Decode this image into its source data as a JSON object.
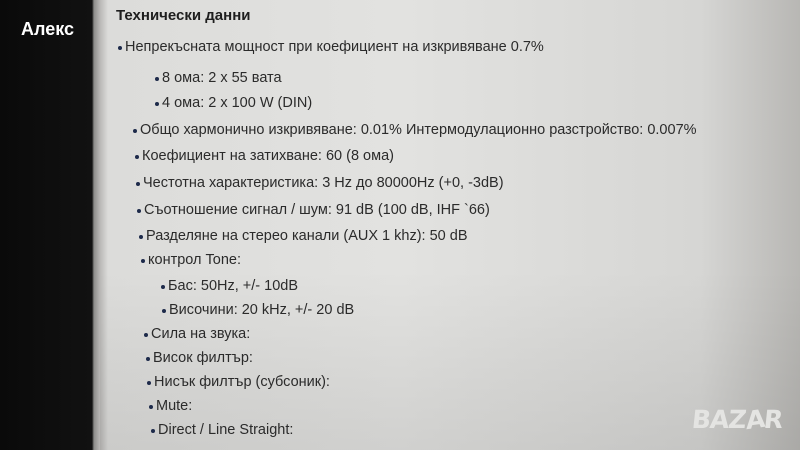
{
  "watermark": "Алекс",
  "heading": "Технически данни",
  "items": [
    {
      "level": 1,
      "text": "Непрекъсната мощност при коефициент на изкривяване 0.7%"
    },
    {
      "level": 2,
      "text": "8 ома: 2 x 55 вата"
    },
    {
      "level": 2,
      "text": "4 ома: 2 x 100 W (DIN)"
    },
    {
      "level": 1,
      "text": "Общо хармонично изкривяване: 0.01% Интермодулационно разстройство: 0.007%"
    },
    {
      "level": 1,
      "text": "Коефициент на затихване: 60 (8 ома)"
    },
    {
      "level": 1,
      "text": "Честотна характеристика: 3 Hz до 80000Hz (+0, -3dB)"
    },
    {
      "level": 1,
      "text": "Съотношение сигнал / шум: 91 dB (100 dB, IHF `66)"
    },
    {
      "level": 1,
      "text": "Разделяне на стерео канали (AUX 1 khz): 50 dB"
    },
    {
      "level": 1,
      "text": "контрол Tone:"
    },
    {
      "level": 2,
      "text": "Бас: 50Hz, +/- 10dB"
    },
    {
      "level": 2,
      "text": "Височини: 20 kHz, +/- 20 dB"
    },
    {
      "level": 1,
      "text": "Сила на звука:"
    },
    {
      "level": 1,
      "text": "Висок филтър:"
    },
    {
      "level": 1,
      "text": "Нисък филтър (субсоник):"
    },
    {
      "level": 1,
      "text": "Mute:"
    },
    {
      "level": 1,
      "text": "Direct / Line Straight:"
    }
  ],
  "logo": "BAZAR"
}
